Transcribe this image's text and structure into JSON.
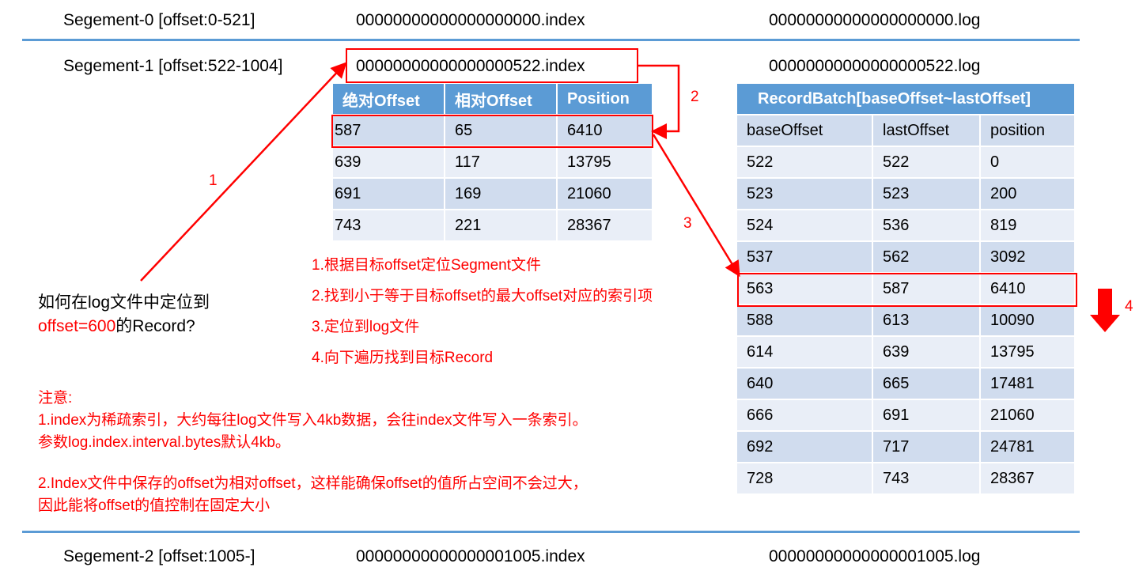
{
  "segments": [
    {
      "label": "Segement-0 [offset:0-521]",
      "index": "00000000000000000000.index",
      "log": "00000000000000000000.log"
    },
    {
      "label": "Segement-1 [offset:522-1004]",
      "index": "00000000000000000522.index",
      "log": "00000000000000000522.log"
    },
    {
      "label": "Segement-2 [offset:1005-]",
      "index": "00000000000000001005.index",
      "log": "00000000000000001005.log"
    }
  ],
  "index_table": {
    "headers": [
      "绝对Offset",
      "相对Offset",
      "Position"
    ],
    "rows": [
      [
        "587",
        "65",
        "6410"
      ],
      [
        "639",
        "117",
        "13795"
      ],
      [
        "691",
        "169",
        "21060"
      ],
      [
        "743",
        "221",
        "28367"
      ]
    ]
  },
  "log_table": {
    "title": "RecordBatch[baseOffset~lastOffset]",
    "headers": [
      "baseOffset",
      "lastOffset",
      "position"
    ],
    "rows": [
      [
        "522",
        "522",
        "0"
      ],
      [
        "523",
        "523",
        "200"
      ],
      [
        "524",
        "536",
        "819"
      ],
      [
        "537",
        "562",
        "3092"
      ],
      [
        "563",
        "587",
        "6410"
      ],
      [
        "588",
        "613",
        "10090"
      ],
      [
        "614",
        "639",
        "13795"
      ],
      [
        "640",
        "665",
        "17481"
      ],
      [
        "666",
        "691",
        "21060"
      ],
      [
        "692",
        "717",
        "24781"
      ],
      [
        "728",
        "743",
        "28367"
      ]
    ]
  },
  "question": {
    "line1": "如何在log文件中定位到",
    "highlight": "offset=600",
    "rest": "的Record?"
  },
  "steps": [
    "1.根据目标offset定位Segment文件",
    "2.找到小于等于目标offset的最大offset对应的索引项",
    "3.定位到log文件",
    "4.向下遍历找到目标Record"
  ],
  "arrow_labels": [
    "1",
    "2",
    "3",
    "4"
  ],
  "notes": {
    "title": "注意:",
    "n1a": "1.index为稀疏索引，大约每往log文件写入4kb数据，会往index文件写入一条索引。",
    "n1b": "参数log.index.interval.bytes默认4kb。",
    "n2a": "2.Index文件中保存的offset为相对offset，这样能确保offset的值所占空间不会过大，",
    "n2b": "因此能将offset的值控制在固定大小"
  },
  "colors": {
    "accent": "#5b9bd5",
    "highlight": "#ff0000"
  }
}
